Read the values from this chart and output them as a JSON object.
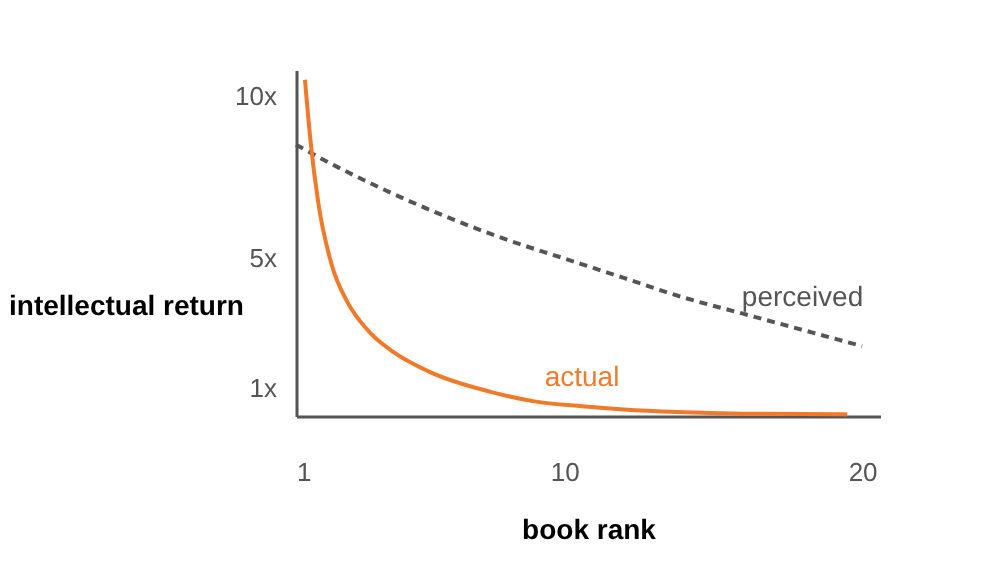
{
  "chart_data": {
    "type": "line",
    "xlabel": "book rank",
    "ylabel": "intellectual return",
    "xlim": [
      1,
      20.6
    ],
    "ylim": [
      0.15,
      10.8
    ],
    "xticks": [
      1,
      10,
      20
    ],
    "yticks": [
      {
        "value": 1,
        "label": "1x"
      },
      {
        "value": 5,
        "label": "5x"
      },
      {
        "value": 10,
        "label": "10x"
      }
    ],
    "grid": false,
    "marker": "none",
    "series": [
      {
        "name": "perceived",
        "color": "#555555",
        "line_style": "dashed",
        "x": [
          1,
          2,
          4,
          6,
          8,
          10,
          12,
          14,
          16,
          18,
          20
        ],
        "values": [
          8.5,
          8.0,
          7.1,
          6.3,
          5.6,
          5.0,
          4.4,
          3.8,
          3.3,
          2.8,
          2.3
        ]
      },
      {
        "name": "actual",
        "color": "#f07a2a",
        "line_style": "solid",
        "x": [
          1.3,
          1.5,
          1.75,
          2.2,
          2.7,
          3.5,
          4.3,
          5.5,
          7.5,
          9,
          10.6,
          12,
          13.8,
          16,
          19.5
        ],
        "values": [
          10.5,
          8.5,
          6.7,
          4.8,
          3.7,
          2.7,
          2.1,
          1.5,
          0.9,
          0.6,
          0.45,
          0.35,
          0.27,
          0.22,
          0.2
        ]
      }
    ]
  }
}
